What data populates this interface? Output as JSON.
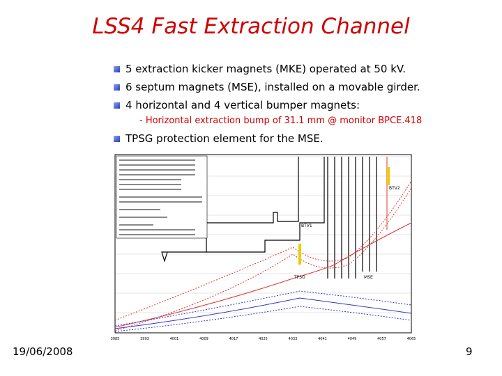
{
  "title": "LSS4 Fast Extraction Channel",
  "bullets": [
    "5 extraction kicker magnets (MKE) operated at 50 kV.",
    "6 septum magnets (MSE), installed on a movable girder.",
    "4 horizontal and 4 vertical bumper magnets:",
    "TPSG protection element for the MSE."
  ],
  "sub_bullet": "- Horizontal extraction bump of 31.1 mm @ monitor BPCE.418",
  "figure": {
    "labels": [
      "BTV1",
      "BTV2",
      "TPSG",
      "MSE"
    ],
    "x_ticks": [
      "3985",
      "3993",
      "4001",
      "4009",
      "4017",
      "4025",
      "4033",
      "4041",
      "4049",
      "4057",
      "4065"
    ]
  },
  "footer": {
    "date": "19/06/2008",
    "page": "9"
  }
}
